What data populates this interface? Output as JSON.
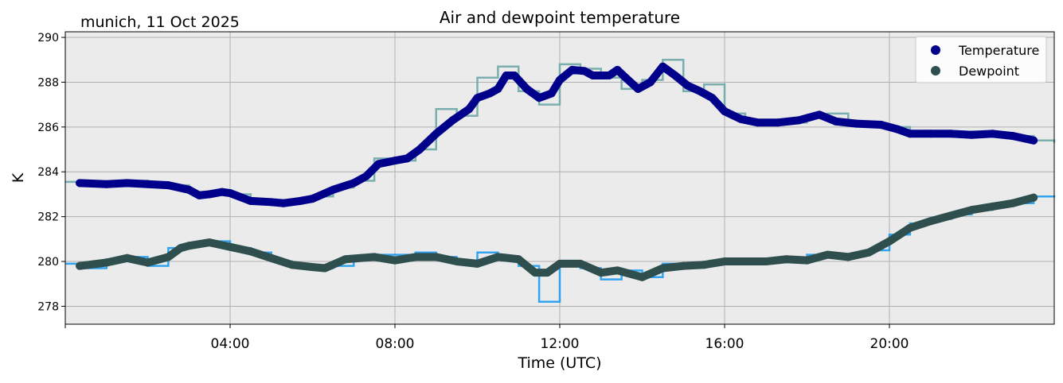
{
  "chart_data": {
    "type": "line",
    "title": "Air and dewpoint temperature",
    "subtitle": "munich, 11 Oct 2025",
    "xlabel": "Time (UTC)",
    "ylabel": "K",
    "xlim_hours": [
      0,
      24
    ],
    "ylim": [
      277.2,
      290.25
    ],
    "x_ticks": [
      {
        "hour": 4,
        "label": "04:00"
      },
      {
        "hour": 8,
        "label": "08:00"
      },
      {
        "hour": 12,
        "label": "12:00"
      },
      {
        "hour": 16,
        "label": "16:00"
      },
      {
        "hour": 20,
        "label": "20:00"
      }
    ],
    "y_ticks": [
      278,
      280,
      282,
      284,
      286,
      288,
      290
    ],
    "grid": true,
    "legend_placement": "top-right",
    "background": "#ebebeb",
    "series": [
      {
        "name": "Temperature",
        "kind": "smoothed",
        "color": "#00008b",
        "x": [
          0.35,
          1,
          1.5,
          2,
          2.5,
          3,
          3.25,
          3.5,
          3.8,
          4,
          4.5,
          5,
          5.3,
          5.7,
          6,
          6.5,
          7,
          7.3,
          7.6,
          8,
          8.3,
          8.6,
          9,
          9.4,
          9.8,
          10,
          10.3,
          10.5,
          10.7,
          10.9,
          11.2,
          11.5,
          11.8,
          12,
          12.3,
          12.6,
          12.8,
          13.2,
          13.4,
          13.6,
          13.9,
          14.2,
          14.5,
          14.8,
          15.1,
          15.4,
          15.7,
          16,
          16.4,
          16.8,
          17.3,
          17.8,
          18.3,
          18.7,
          19.2,
          19.8,
          20.2,
          20.5,
          21,
          21.5,
          22,
          22.5,
          23,
          23.5
        ],
        "y": [
          283.5,
          283.45,
          283.5,
          283.45,
          283.4,
          283.2,
          282.95,
          283.0,
          283.1,
          283.05,
          282.7,
          282.65,
          282.6,
          282.7,
          282.8,
          283.2,
          283.5,
          283.8,
          284.35,
          284.5,
          284.6,
          285.0,
          285.7,
          286.3,
          286.8,
          287.3,
          287.5,
          287.7,
          288.3,
          288.3,
          287.7,
          287.3,
          287.5,
          288.1,
          288.55,
          288.5,
          288.3,
          288.3,
          288.55,
          288.2,
          287.7,
          288.0,
          288.7,
          288.3,
          287.85,
          287.6,
          287.3,
          286.7,
          286.35,
          286.2,
          286.2,
          286.3,
          286.55,
          286.25,
          286.15,
          286.1,
          285.9,
          285.7,
          285.7,
          285.7,
          285.65,
          285.7,
          285.6,
          285.4
        ]
      },
      {
        "name": "Dewpoint",
        "kind": "smoothed",
        "color": "#2f4f4f",
        "x": [
          0.35,
          1,
          1.5,
          2,
          2.5,
          2.8,
          3,
          3.5,
          4,
          4.5,
          5,
          5.5,
          6,
          6.3,
          6.8,
          7.5,
          8,
          8.5,
          9,
          9.5,
          10,
          10.5,
          11,
          11.4,
          11.7,
          12,
          12.5,
          13,
          13.4,
          14,
          14.5,
          15,
          15.5,
          16,
          17,
          17.5,
          18,
          18.5,
          19,
          19.5,
          20,
          20.5,
          21,
          21.5,
          22,
          22.5,
          23,
          23.5
        ],
        "y": [
          279.8,
          279.95,
          280.15,
          279.95,
          280.2,
          280.6,
          280.7,
          280.85,
          280.65,
          280.45,
          280.15,
          279.85,
          279.75,
          279.7,
          280.1,
          280.2,
          280.05,
          280.2,
          280.2,
          280.0,
          279.9,
          280.2,
          280.1,
          279.5,
          279.5,
          279.9,
          279.9,
          279.5,
          279.6,
          279.3,
          279.7,
          279.8,
          279.85,
          280.0,
          280.0,
          280.1,
          280.05,
          280.3,
          280.2,
          280.4,
          280.9,
          281.5,
          281.8,
          282.05,
          282.3,
          282.45,
          282.6,
          282.85
        ]
      },
      {
        "kind": "raw-temperature",
        "color": "#6fa8a8",
        "x": [
          0,
          0.5,
          1,
          1.5,
          2,
          2.5,
          3,
          3.5,
          4,
          4.5,
          5,
          5.5,
          6,
          6.5,
          7,
          7.5,
          8,
          8.5,
          9,
          9.5,
          10,
          10.5,
          11,
          11.5,
          12,
          12.5,
          13,
          13.5,
          14,
          14.5,
          15,
          15.5,
          16,
          16.5,
          17,
          17.5,
          18,
          18.5,
          19,
          19.5,
          20,
          20.5,
          21,
          21.5,
          22,
          22.5,
          23,
          23.5,
          24
        ],
        "y": [
          283.55,
          283.45,
          283.4,
          283.6,
          283.45,
          283.4,
          283.1,
          283.0,
          283.0,
          282.7,
          282.6,
          282.7,
          282.9,
          283.3,
          283.6,
          284.6,
          284.5,
          285.0,
          286.8,
          286.5,
          288.2,
          288.7,
          287.6,
          287.0,
          288.8,
          288.6,
          288.2,
          287.7,
          288.1,
          289.0,
          287.6,
          287.9,
          286.6,
          286.3,
          286.2,
          286.2,
          286.5,
          286.6,
          286.2,
          286.1,
          286.0,
          285.7,
          285.7,
          285.6,
          285.8,
          285.6,
          285.6,
          285.4,
          285.3
        ]
      },
      {
        "kind": "raw-dewpoint",
        "color": "#1e9cf0",
        "x": [
          0,
          0.5,
          1,
          1.5,
          2,
          2.5,
          3,
          3.5,
          4,
          4.5,
          5,
          5.5,
          6,
          6.5,
          7,
          7.5,
          8,
          8.5,
          9,
          9.5,
          10,
          10.5,
          11,
          11.5,
          12,
          12.5,
          13,
          13.5,
          14,
          14.5,
          15,
          15.5,
          16,
          16.5,
          17,
          17.5,
          18,
          18.5,
          19,
          19.5,
          20,
          20.5,
          21,
          21.5,
          22,
          22.5,
          23,
          23.5,
          24
        ],
        "y": [
          279.9,
          279.7,
          280.1,
          280.2,
          279.8,
          280.6,
          280.8,
          280.9,
          280.6,
          280.4,
          280.0,
          279.8,
          279.7,
          279.8,
          280.2,
          280.3,
          280.3,
          280.4,
          280.2,
          279.9,
          280.4,
          280.1,
          279.8,
          278.2,
          280.0,
          279.7,
          279.2,
          279.6,
          279.3,
          279.9,
          279.8,
          279.9,
          280.0,
          280.0,
          280.1,
          280.1,
          280.3,
          280.2,
          280.3,
          280.5,
          281.2,
          281.7,
          281.9,
          282.1,
          282.3,
          282.5,
          282.6,
          282.9,
          282.95
        ]
      }
    ]
  }
}
